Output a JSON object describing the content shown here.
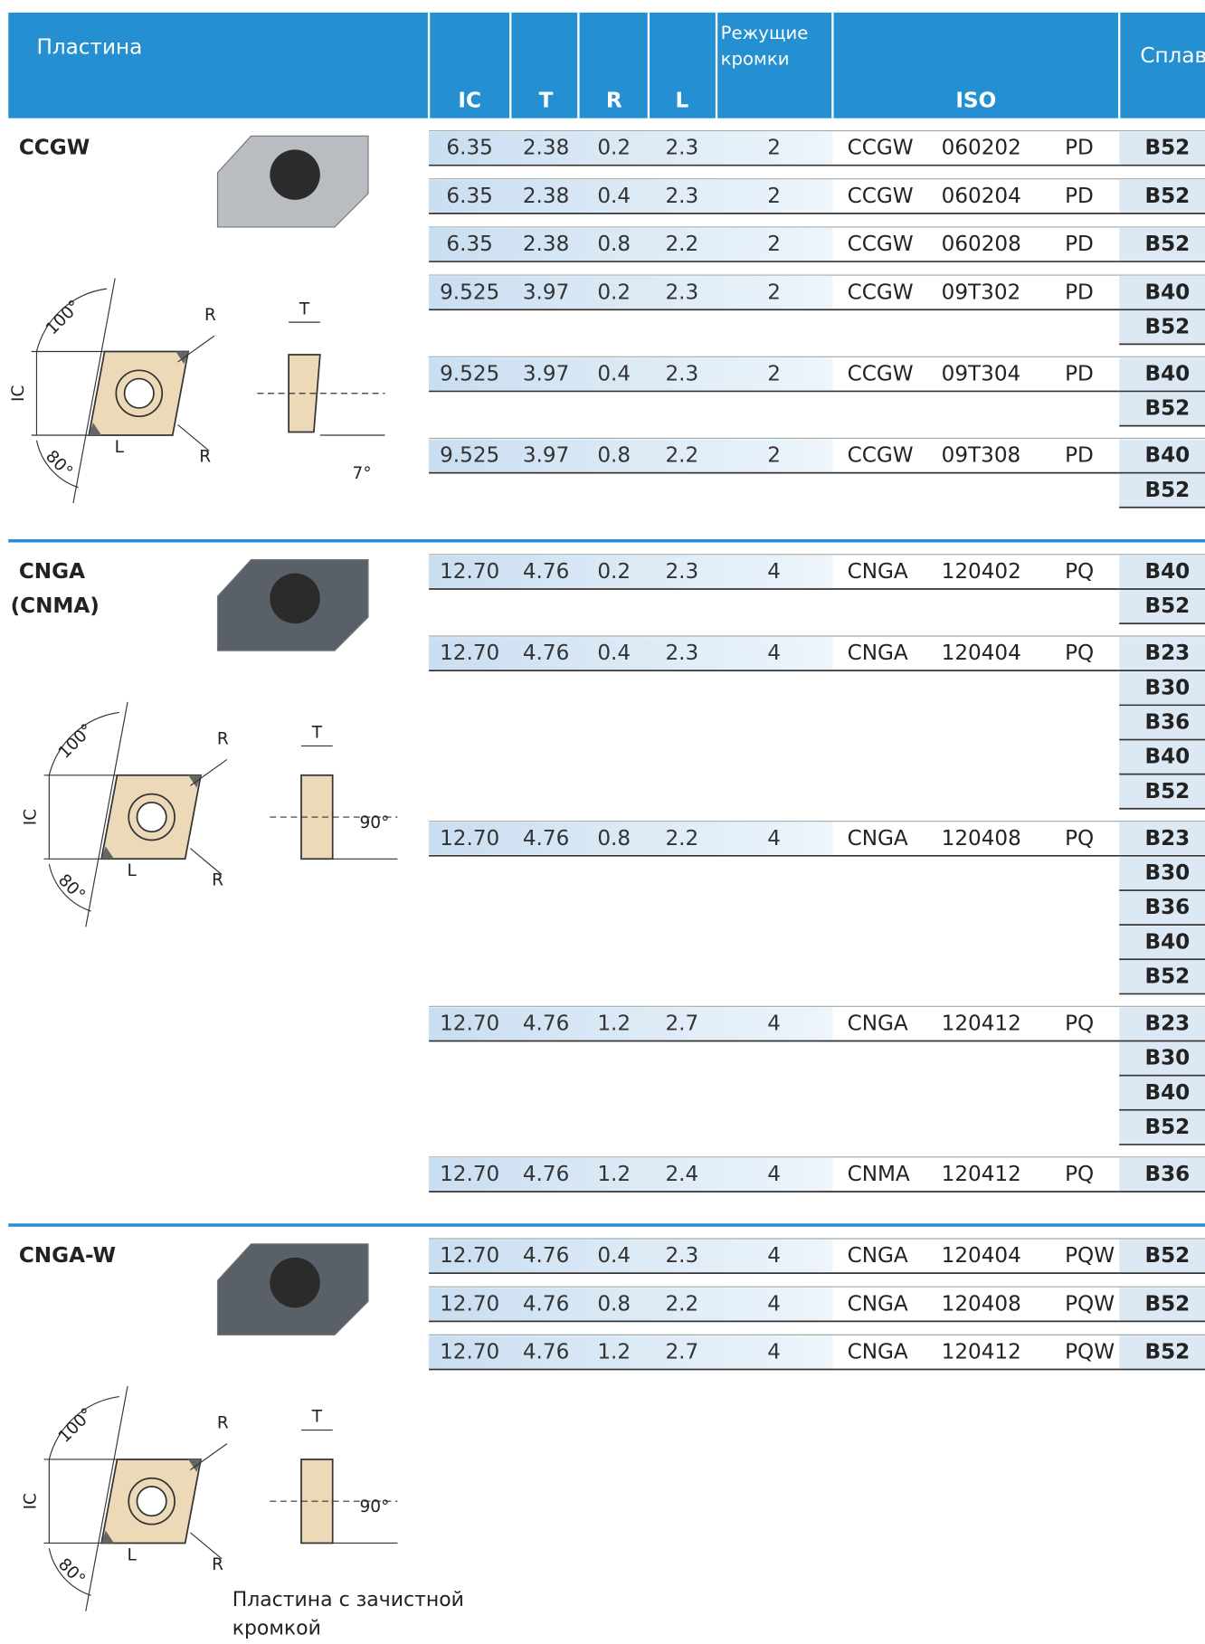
{
  "header": {
    "title": "Пластина",
    "columns": [
      "IC",
      "T",
      "R",
      "L",
      "Режущие кромки",
      "ISO",
      "Сплав"
    ]
  },
  "sections": [
    {
      "name": [
        "CCGW"
      ],
      "diagram": {
        "angle_top": "100°",
        "r_top": "R",
        "ic": "IC",
        "l": "L",
        "angle_bottom": "80°",
        "r_bottom": "R",
        "t": "T",
        "side_angle": "7°"
      },
      "rows": [
        {
          "ic": "6.35",
          "t": "2.38",
          "r": "0.2",
          "l": "2.3",
          "edges": "2",
          "iso": [
            "CCGW",
            "060202",
            "PD"
          ],
          "grades": [
            "B52"
          ]
        },
        {
          "ic": "6.35",
          "t": "2.38",
          "r": "0.4",
          "l": "2.3",
          "edges": "2",
          "iso": [
            "CCGW",
            "060204",
            "PD"
          ],
          "grades": [
            "B52"
          ]
        },
        {
          "ic": "6.35",
          "t": "2.38",
          "r": "0.8",
          "l": "2.2",
          "edges": "2",
          "iso": [
            "CCGW",
            "060208",
            "PD"
          ],
          "grades": [
            "B52"
          ]
        },
        {
          "ic": "9.525",
          "t": "3.97",
          "r": "0.2",
          "l": "2.3",
          "edges": "2",
          "iso": [
            "CCGW",
            "09T302",
            "PD"
          ],
          "grades": [
            "B40",
            "B52"
          ]
        },
        {
          "ic": "9.525",
          "t": "3.97",
          "r": "0.4",
          "l": "2.3",
          "edges": "2",
          "iso": [
            "CCGW",
            "09T304",
            "PD"
          ],
          "grades": [
            "B40",
            "B52"
          ]
        },
        {
          "ic": "9.525",
          "t": "3.97",
          "r": "0.8",
          "l": "2.2",
          "edges": "2",
          "iso": [
            "CCGW",
            "09T308",
            "PD"
          ],
          "grades": [
            "B40",
            "B52"
          ]
        }
      ]
    },
    {
      "name": [
        "CNGA",
        "(CNMA)"
      ],
      "diagram": {
        "angle_top": "100°",
        "r_top": "R",
        "ic": "IC",
        "l": "L",
        "angle_bottom": "80°",
        "r_bottom": "R",
        "t": "T",
        "side_angle": "90°"
      },
      "rows": [
        {
          "ic": "12.70",
          "t": "4.76",
          "r": "0.2",
          "l": "2.3",
          "edges": "4",
          "iso": [
            "CNGA",
            "120402",
            "PQ"
          ],
          "grades": [
            "B40",
            "B52"
          ]
        },
        {
          "ic": "12.70",
          "t": "4.76",
          "r": "0.4",
          "l": "2.3",
          "edges": "4",
          "iso": [
            "CNGA",
            "120404",
            "PQ"
          ],
          "grades": [
            "B23",
            "B30",
            "B36",
            "B40",
            "B52"
          ]
        },
        {
          "ic": "12.70",
          "t": "4.76",
          "r": "0.8",
          "l": "2.2",
          "edges": "4",
          "iso": [
            "CNGA",
            "120408",
            "PQ"
          ],
          "grades": [
            "B23",
            "B30",
            "B36",
            "B40",
            "B52"
          ]
        },
        {
          "ic": "12.70",
          "t": "4.76",
          "r": "1.2",
          "l": "2.7",
          "edges": "4",
          "iso": [
            "CNGA",
            "120412",
            "PQ"
          ],
          "grades": [
            "B23",
            "B30",
            "B40",
            "B52"
          ]
        },
        {
          "ic": "12.70",
          "t": "4.76",
          "r": "1.2",
          "l": "2.4",
          "edges": "4",
          "iso": [
            "CNMA",
            "120412",
            "PQ"
          ],
          "grades": [
            "B36"
          ]
        }
      ]
    },
    {
      "name": [
        "CNGA-W"
      ],
      "diagram": {
        "angle_top": "100°",
        "r_top": "R",
        "ic": "IC",
        "l": "L",
        "angle_bottom": "80°",
        "r_bottom": "R",
        "t": "T",
        "side_angle": "90°"
      },
      "caption": [
        "Пластина с зачистной",
        "кромкой"
      ],
      "rows": [
        {
          "ic": "12.70",
          "t": "4.76",
          "r": "0.4",
          "l": "2.3",
          "edges": "4",
          "iso": [
            "CNGA",
            "120404",
            "PQW"
          ],
          "grades": [
            "B52"
          ]
        },
        {
          "ic": "12.70",
          "t": "4.76",
          "r": "0.8",
          "l": "2.2",
          "edges": "4",
          "iso": [
            "CNGA",
            "120408",
            "PQW"
          ],
          "grades": [
            "B52"
          ]
        },
        {
          "ic": "12.70",
          "t": "4.76",
          "r": "1.2",
          "l": "2.7",
          "edges": "4",
          "iso": [
            "CNGA",
            "120412",
            "PQW"
          ],
          "grades": [
            "B52"
          ]
        }
      ]
    }
  ]
}
